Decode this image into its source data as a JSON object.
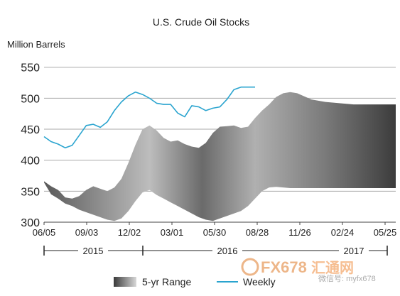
{
  "chart_data": {
    "type": "area",
    "title": "U.S. Crude Oil Stocks",
    "ylabel": "Million Barrels",
    "xlabel": "",
    "ylim": [
      300,
      560
    ],
    "yticks": [
      300,
      350,
      400,
      450,
      500,
      550
    ],
    "x_tick_labels": [
      "06/05",
      "09/03",
      "12/02",
      "03/01",
      "05/30",
      "08/28",
      "11/26",
      "02/24",
      "05/25"
    ],
    "year_labels": [
      "2015",
      "2016",
      "2017"
    ],
    "grid": true,
    "legend_position": "bottom",
    "series": [
      {
        "name": "5-yr Range",
        "kind": "range",
        "x": [
          0,
          4,
          8,
          12,
          16,
          20,
          24,
          28,
          32,
          36,
          40,
          44,
          48,
          52,
          56,
          60,
          64,
          68,
          72,
          76,
          80,
          84,
          88,
          92,
          96,
          100,
          104,
          108,
          112,
          116,
          120,
          124,
          128,
          132,
          136,
          140,
          144,
          148,
          152,
          156,
          160,
          164,
          168,
          172,
          176,
          180,
          184,
          188,
          192,
          196,
          200
        ],
        "high": [
          366,
          358,
          352,
          340,
          338,
          342,
          352,
          358,
          354,
          350,
          356,
          370,
          396,
          425,
          450,
          456,
          448,
          436,
          430,
          432,
          426,
          422,
          420,
          428,
          444,
          454,
          455,
          456,
          452,
          454,
          468,
          480,
          490,
          502,
          508,
          510,
          508,
          503,
          498,
          496,
          494,
          493,
          492,
          491,
          490,
          490,
          490,
          490,
          490,
          490,
          490
        ],
        "low": [
          364,
          345,
          338,
          330,
          326,
          320,
          316,
          312,
          308,
          304,
          302,
          306,
          318,
          334,
          348,
          352,
          344,
          338,
          332,
          326,
          320,
          314,
          308,
          304,
          302,
          306,
          310,
          314,
          318,
          326,
          338,
          350,
          356,
          357,
          356,
          355,
          355,
          355,
          355,
          355,
          355,
          355,
          355,
          355,
          355,
          355,
          355,
          355,
          355,
          355,
          355
        ]
      },
      {
        "name": "Weekly",
        "kind": "line",
        "color": "#2aa4cf",
        "x": [
          0,
          4,
          8,
          12,
          16,
          20,
          24,
          28,
          32,
          36,
          40,
          44,
          48,
          52,
          56,
          60,
          64,
          68,
          72,
          76,
          80,
          84,
          88,
          92,
          96,
          100,
          104,
          108,
          112,
          116,
          120
        ],
        "values": [
          438,
          430,
          426,
          420,
          424,
          440,
          456,
          458,
          453,
          462,
          480,
          494,
          504,
          510,
          506,
          500,
          492,
          490,
          490,
          476,
          470,
          488,
          486,
          480,
          484,
          486,
          498,
          514,
          518,
          518,
          518
        ]
      }
    ]
  },
  "watermark": {
    "brand": "FX678",
    "tagline": "汇通网",
    "wechat": "微信号: myfx678"
  },
  "colors": {
    "line": "#2aa4cf",
    "grid": "#aaaaaa",
    "axis": "#444444"
  }
}
